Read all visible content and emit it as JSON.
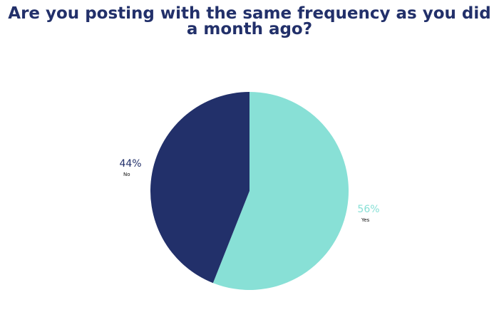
{
  "chart_data": {
    "type": "pie",
    "title": "Are you posting with the same frequency as you did a month ago?",
    "categories": [
      "Yes",
      "No"
    ],
    "values": [
      56,
      44
    ],
    "value_labels": [
      "56%",
      "44%"
    ],
    "colors": [
      "#88e0d6",
      "#22306a"
    ]
  }
}
